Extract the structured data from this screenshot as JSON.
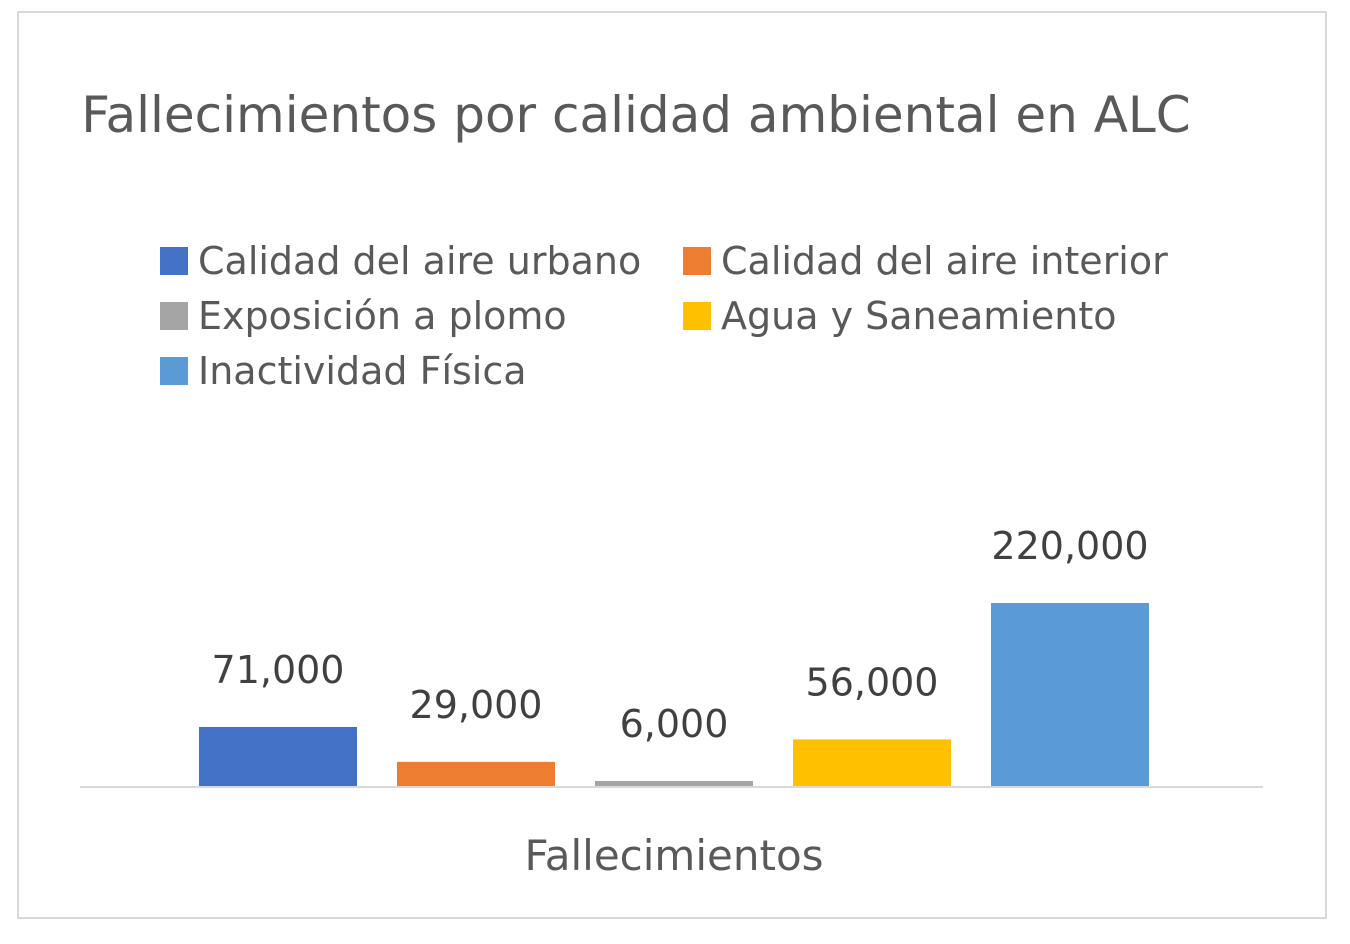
{
  "chart_data": {
    "type": "bar",
    "title": "Fallecimientos por calidad ambiental en ALC",
    "categories": [
      "Fallecimientos"
    ],
    "series": [
      {
        "name": "Calidad del aire urbano",
        "values": [
          71000
        ],
        "color": "#4472c4",
        "label": "71,000"
      },
      {
        "name": "Calidad del aire interior",
        "values": [
          29000
        ],
        "color": "#ed7d31",
        "label": "29,000"
      },
      {
        "name": "Exposición a plomo",
        "values": [
          6000
        ],
        "color": "#a5a5a5",
        "label": "6,000"
      },
      {
        "name": "Agua y Saneamiento",
        "values": [
          56000
        ],
        "color": "#ffc000",
        "label": "56,000"
      },
      {
        "name": "Inactividad Física",
        "values": [
          220000
        ],
        "color": "#5b9bd5",
        "label": "220,000"
      }
    ],
    "ylim": [
      0,
      220000
    ],
    "grid": false,
    "legend_position": "top"
  }
}
